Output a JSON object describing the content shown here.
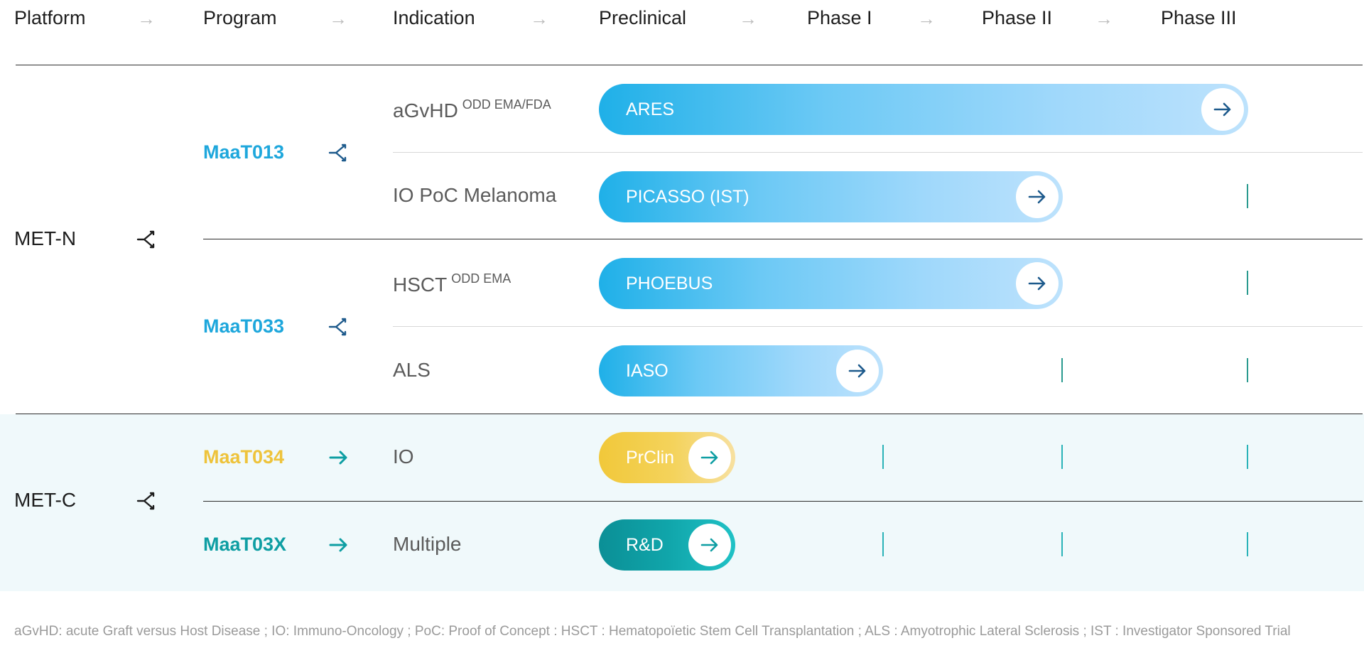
{
  "header": {
    "columns": [
      "Platform",
      "Program",
      "Indication",
      "Preclinical",
      "Phase I",
      "Phase II",
      "Phase III"
    ],
    "arrow": "→"
  },
  "platforms": [
    {
      "name": "MET-N"
    },
    {
      "name": "MET-C"
    }
  ],
  "programs": [
    {
      "name": "MaaT013",
      "color": "#1ea7dc"
    },
    {
      "name": "MaaT033",
      "color": "#1ea7dc"
    },
    {
      "name": "MaaT034",
      "color": "#eec33b"
    },
    {
      "name": "MaaT03X",
      "color": "#0e9ea3"
    }
  ],
  "rows": [
    {
      "indication": "aGvHD",
      "designation": "ODD EMA/FDA",
      "trial": "ARES",
      "stage": "Phase III"
    },
    {
      "indication": "IO PoC Melanoma",
      "designation": "",
      "trial": "PICASSO (IST)",
      "stage": "Phase II"
    },
    {
      "indication": "HSCT",
      "designation": "ODD EMA",
      "trial": "PHOEBUS",
      "stage": "Phase II"
    },
    {
      "indication": "ALS",
      "designation": "",
      "trial": "IASO",
      "stage": "Phase I"
    },
    {
      "indication": "IO",
      "designation": "",
      "trial": "PrClin",
      "stage": "Preclinical"
    },
    {
      "indication": "Multiple",
      "designation": "",
      "trial": "R&D",
      "stage": "Preclinical"
    }
  ],
  "colors": {
    "met_c_band": "#f0f9fb",
    "blue_pill": "#1fb0e8",
    "yellow_pill": "#f1c83a",
    "teal_pill": "#0e9ea3",
    "branch_icon_dark": "#1e1e1e",
    "branch_icon_blue": "#1d5a8c",
    "arrow_teal": "#0e9ea3"
  },
  "icons": {
    "branch": "branch-split-icon",
    "arrow": "arrow-right-icon",
    "circle_arrow": "arrow-right-circle-icon"
  },
  "footnote": "aGvHD: acute Graft versus Host Disease ; IO: Immuno-Oncology ; PoC: Proof of Concept : HSCT : Hematopoïetic Stem Cell Transplantation ; ALS : Amyotrophic Lateral Sclerosis ; IST : Investigator Sponsored Trial"
}
